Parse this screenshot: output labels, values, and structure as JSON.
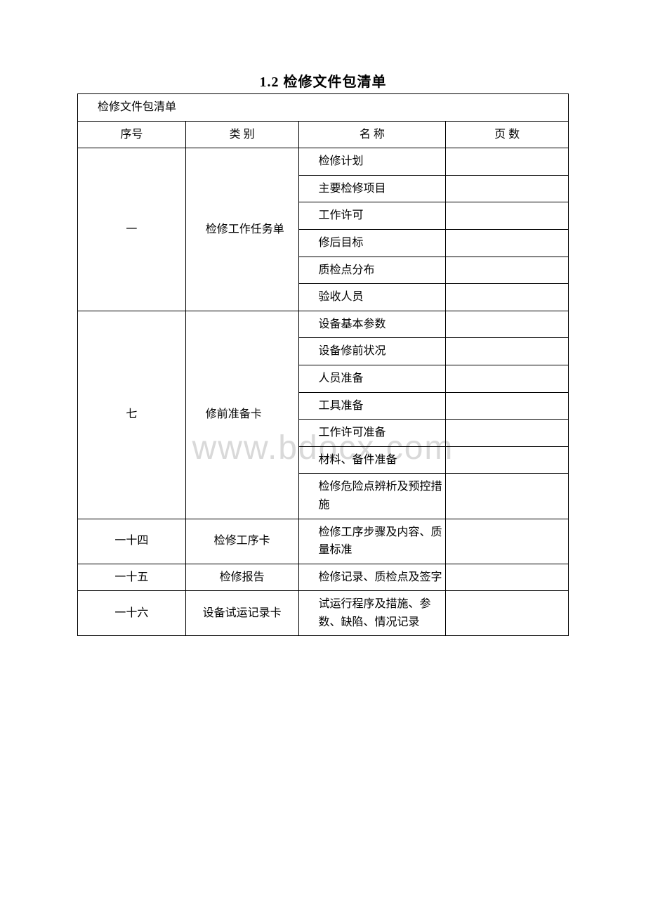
{
  "title": "1.2 检修文件包清单",
  "watermark": "www.bdocx.com",
  "table": {
    "header_row": {
      "label": "检修文件包清单"
    },
    "columns": [
      "序号",
      "类 别",
      "名 称",
      "页 数"
    ],
    "sections": [
      {
        "seq": "一",
        "category": "检修工作任务单",
        "items": [
          {
            "name": "检修计划",
            "pages": ""
          },
          {
            "name": "主要检修项目",
            "pages": ""
          },
          {
            "name": "工作许可",
            "pages": ""
          },
          {
            "name": "修后目标",
            "pages": ""
          },
          {
            "name": "质检点分布",
            "pages": ""
          },
          {
            "name": "验收人员",
            "pages": ""
          }
        ]
      },
      {
        "seq": "七",
        "category": "修前准备卡",
        "items": [
          {
            "name": "设备基本参数",
            "pages": ""
          },
          {
            "name": "设备修前状况",
            "pages": ""
          },
          {
            "name": "人员准备",
            "pages": ""
          },
          {
            "name": "工具准备",
            "pages": ""
          },
          {
            "name": "工作许可准备",
            "pages": ""
          },
          {
            "name": "材料、备件准备",
            "pages": ""
          },
          {
            "name": "检修危险点辨析及预控措施",
            "pages": ""
          }
        ]
      },
      {
        "seq": "一十四",
        "category": "检修工序卡",
        "items": [
          {
            "name": "检修工序步骤及内容、质量标准",
            "pages": ""
          }
        ]
      },
      {
        "seq": "一十五",
        "category": "检修报告",
        "items": [
          {
            "name": "检修记录、质检点及签字",
            "pages": ""
          }
        ]
      },
      {
        "seq": "一十六",
        "category": "设备试运记录卡",
        "items": [
          {
            "name": "试运行程序及措施、参数、缺陷、情况记录",
            "pages": ""
          }
        ]
      }
    ]
  }
}
